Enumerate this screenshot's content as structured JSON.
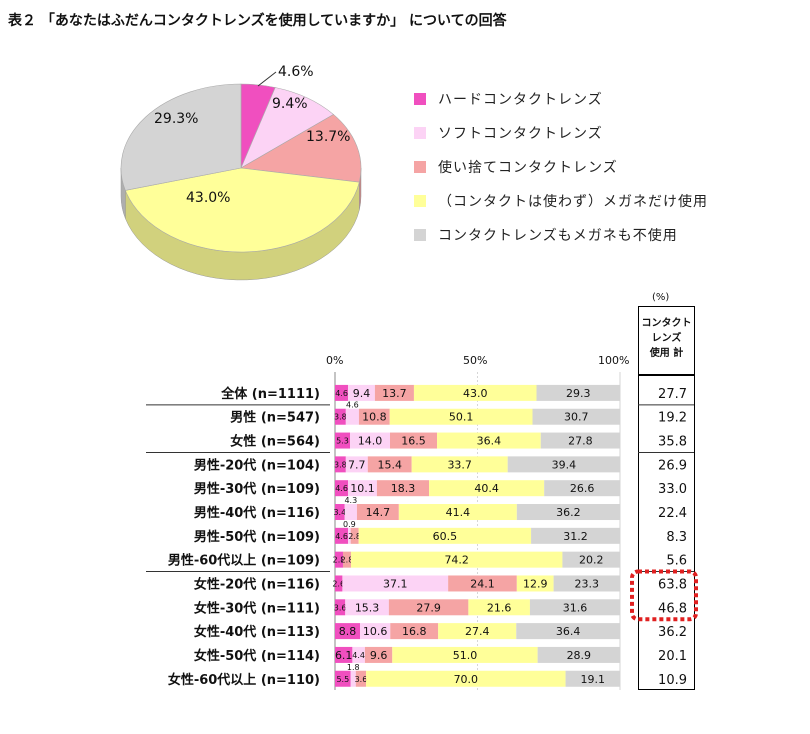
{
  "title": "表２ 「あなたはふだんコンタクトレンズを使用していますか」 についての回答",
  "legend": [
    {
      "label": "ハードコンタクトレンズ",
      "color": "#f04fbf"
    },
    {
      "label": "ソフトコンタクトレンズ",
      "color": "#fcd3f5"
    },
    {
      "label": "使い捨てコンタクトレンズ",
      "color": "#f5a4a4"
    },
    {
      "label": "（コンタクトは使わず）メガネだけ使用",
      "color": "#ffff99"
    },
    {
      "label": "コンタクトレンズもメガネも不使用",
      "color": "#d4d4d4"
    }
  ],
  "percent_unit": "(%)",
  "column_header": [
    "コンタクト",
    "レンズ",
    "使用 計"
  ],
  "scale_labels": [
    "0%",
    "50%",
    "100%"
  ],
  "chart_data": [
    {
      "type": "pie",
      "labels": [
        "ハードコンタクトレンズ",
        "ソフトコンタクトレンズ",
        "使い捨てコンタクトレンズ",
        "（コンタクトは使わず）メガネだけ使用",
        "コンタクトレンズもメガネも不使用"
      ],
      "values": [
        4.6,
        9.4,
        13.7,
        43.0,
        29.3
      ],
      "value_labels": [
        "4.6%",
        "9.4%",
        "13.7%",
        "43.0%",
        "29.3%"
      ]
    },
    {
      "type": "bar",
      "stacked": true,
      "orientation": "horizontal",
      "xlim": [
        0,
        100
      ],
      "categories": [
        "全体 (n=1111)",
        "男性 (n=547)",
        "女性 (n=564)",
        "男性-20代 (n=104)",
        "男性-30代 (n=109)",
        "男性-40代 (n=116)",
        "男性-50代 (n=109)",
        "男性-60代以上 (n=109)",
        "女性-20代 (n=116)",
        "女性-30代 (n=111)",
        "女性-40代 (n=113)",
        "女性-50代 (n=114)",
        "女性-60代以上 (n=110)"
      ],
      "series": [
        {
          "name": "ハードコンタクトレンズ",
          "values": [
            4.6,
            3.8,
            5.3,
            3.8,
            4.6,
            3.4,
            4.6,
            2.8,
            2.6,
            3.6,
            8.8,
            6.1,
            5.5
          ]
        },
        {
          "name": "ソフトコンタクトレンズ",
          "values": [
            9.4,
            4.6,
            14.0,
            7.7,
            10.1,
            4.3,
            0.9,
            0.0,
            37.1,
            15.3,
            10.6,
            4.4,
            1.8
          ]
        },
        {
          "name": "使い捨てコンタクトレンズ",
          "values": [
            13.7,
            10.8,
            16.5,
            15.4,
            18.3,
            14.7,
            2.8,
            2.8,
            24.1,
            27.9,
            16.8,
            9.6,
            3.6
          ]
        },
        {
          "name": "（コンタクトは使わず）メガネだけ使用",
          "values": [
            43.0,
            50.1,
            36.4,
            33.7,
            40.4,
            41.4,
            60.5,
            74.2,
            12.9,
            21.6,
            27.4,
            51.0,
            70.0
          ]
        },
        {
          "name": "コンタクトレンズもメガネも不使用",
          "values": [
            29.3,
            30.7,
            27.8,
            39.4,
            26.6,
            36.2,
            31.2,
            20.2,
            23.3,
            31.6,
            36.4,
            28.9,
            19.1
          ]
        }
      ],
      "contact_lens_total": [
        "27.7",
        "19.2",
        "35.8",
        "26.9",
        "33.0",
        "22.4",
        "8.3",
        "5.6",
        "63.8",
        "46.8",
        "36.2",
        "20.1",
        "10.9"
      ],
      "highlighted_rows": [
        "女性-20代 (n=116)",
        "女性-30代 (n=111)"
      ],
      "highlight_color": "#e02020"
    }
  ]
}
